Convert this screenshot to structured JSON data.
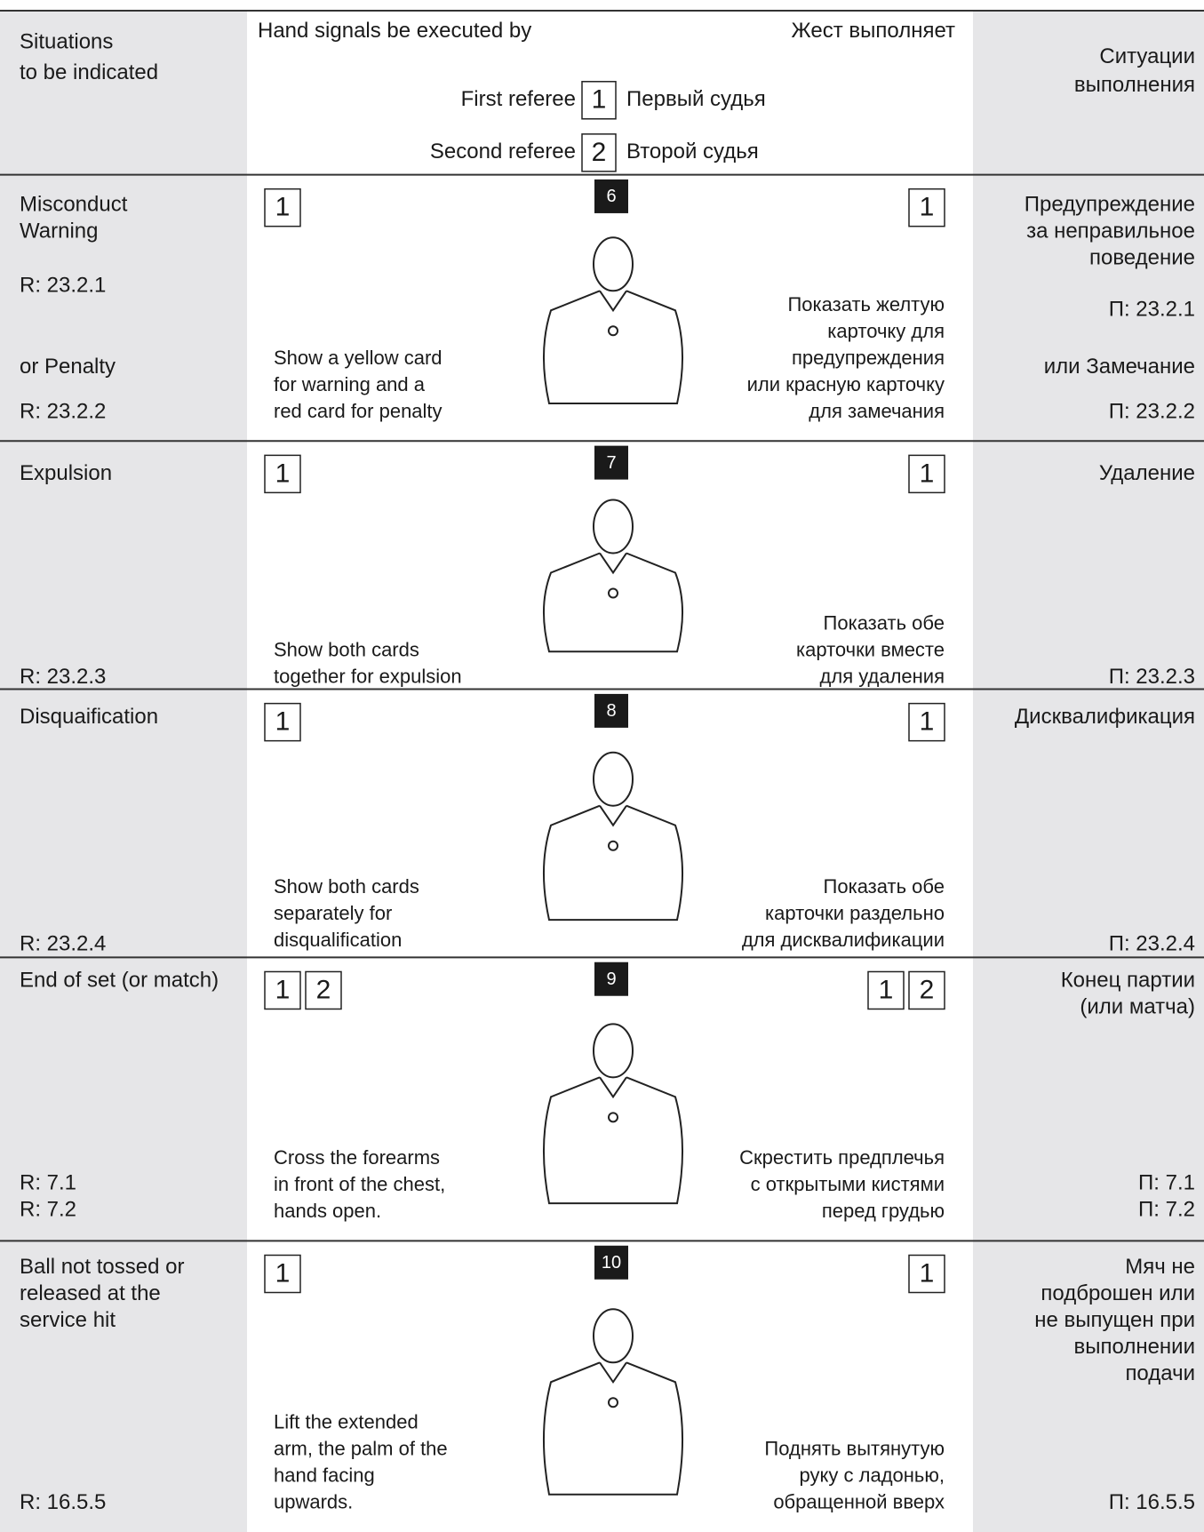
{
  "header": {
    "left": [
      "Situations",
      "to be indicated"
    ],
    "center_left": "Hand signals be executed by",
    "center_right": "Жест выполняет",
    "right": [
      "Ситуации",
      "выполнения"
    ],
    "legend": [
      {
        "label": "First referee",
        "number": "1",
        "label_ru": "Первый судья"
      },
      {
        "label": "Second referee",
        "number": "2",
        "label_ru": "Второй судья"
      }
    ]
  },
  "rows": [
    {
      "number": "6",
      "left": [
        [
          "Misconduct",
          "Warning"
        ],
        [
          "R: 23.2.1"
        ],
        [
          "or Penalty"
        ],
        [
          "R: 23.2.2"
        ]
      ],
      "right": [
        [
          "Предупреждение",
          "за неправильное",
          "поведение"
        ],
        [
          "П: 23.2.1"
        ],
        [
          "или Замечание"
        ],
        [
          "П: 23.2.2"
        ]
      ],
      "boxes_left": [
        "1"
      ],
      "boxes_right": [
        "1"
      ],
      "text_en": [
        "Show a yellow card",
        "for warning and a",
        "red card for penalty"
      ],
      "text_ru": [
        "Показать желтую",
        "карточку для",
        "предупреждения",
        "или красную карточку",
        "для замечания"
      ]
    },
    {
      "number": "7",
      "left": [
        [
          "Expulsion"
        ],
        [
          "R: 23.2.3"
        ]
      ],
      "right": [
        [
          "Удаление"
        ],
        [
          "П: 23.2.3"
        ]
      ],
      "boxes_left": [
        "1"
      ],
      "boxes_right": [
        "1"
      ],
      "text_en": [
        "Show both cards",
        "together for expulsion"
      ],
      "text_ru": [
        "Показать обе",
        "карточки вместе",
        "для удаления"
      ]
    },
    {
      "number": "8",
      "left": [
        [
          "Disquaification"
        ],
        [
          "R: 23.2.4"
        ]
      ],
      "right": [
        [
          "Дисквалификация"
        ],
        [
          "П: 23.2.4"
        ]
      ],
      "boxes_left": [
        "1"
      ],
      "boxes_right": [
        "1"
      ],
      "text_en": [
        "Show both cards",
        "separately for",
        "disqualification"
      ],
      "text_ru": [
        "Показать обе",
        "карточки раздельно",
        "для дисквалификации"
      ]
    },
    {
      "number": "9",
      "left": [
        [
          "End of set (or match)"
        ],
        [
          "R: 7.1",
          "R: 7.2"
        ]
      ],
      "right": [
        [
          "Конец партии",
          "(или матча)"
        ],
        [
          "П: 7.1",
          "П: 7.2"
        ]
      ],
      "boxes_left": [
        "1",
        "2"
      ],
      "boxes_right": [
        "1",
        "2"
      ],
      "text_en": [
        "Cross the forearms",
        "in front of the chest,",
        "hands open."
      ],
      "text_ru": [
        "Скрестить предплечья",
        "с открытыми кистями",
        "перед грудью"
      ]
    },
    {
      "number": "10",
      "left": [
        [
          "Ball not tossed or",
          "released at the",
          "service hit"
        ],
        [
          "R: 16.5.5"
        ]
      ],
      "right": [
        [
          "Мяч не",
          "подброшен или",
          "не выпущен при",
          "выполнении",
          "подачи"
        ],
        [
          "П: 16.5.5"
        ]
      ],
      "boxes_left": [
        "1"
      ],
      "boxes_right": [
        "1"
      ],
      "text_en": [
        "Lift the extended",
        "arm, the palm of the",
        "hand facing",
        "upwards."
      ],
      "text_ru": [
        "Поднять вытянутую",
        "руку с ладонью,",
        "обращенной вверх"
      ]
    }
  ]
}
